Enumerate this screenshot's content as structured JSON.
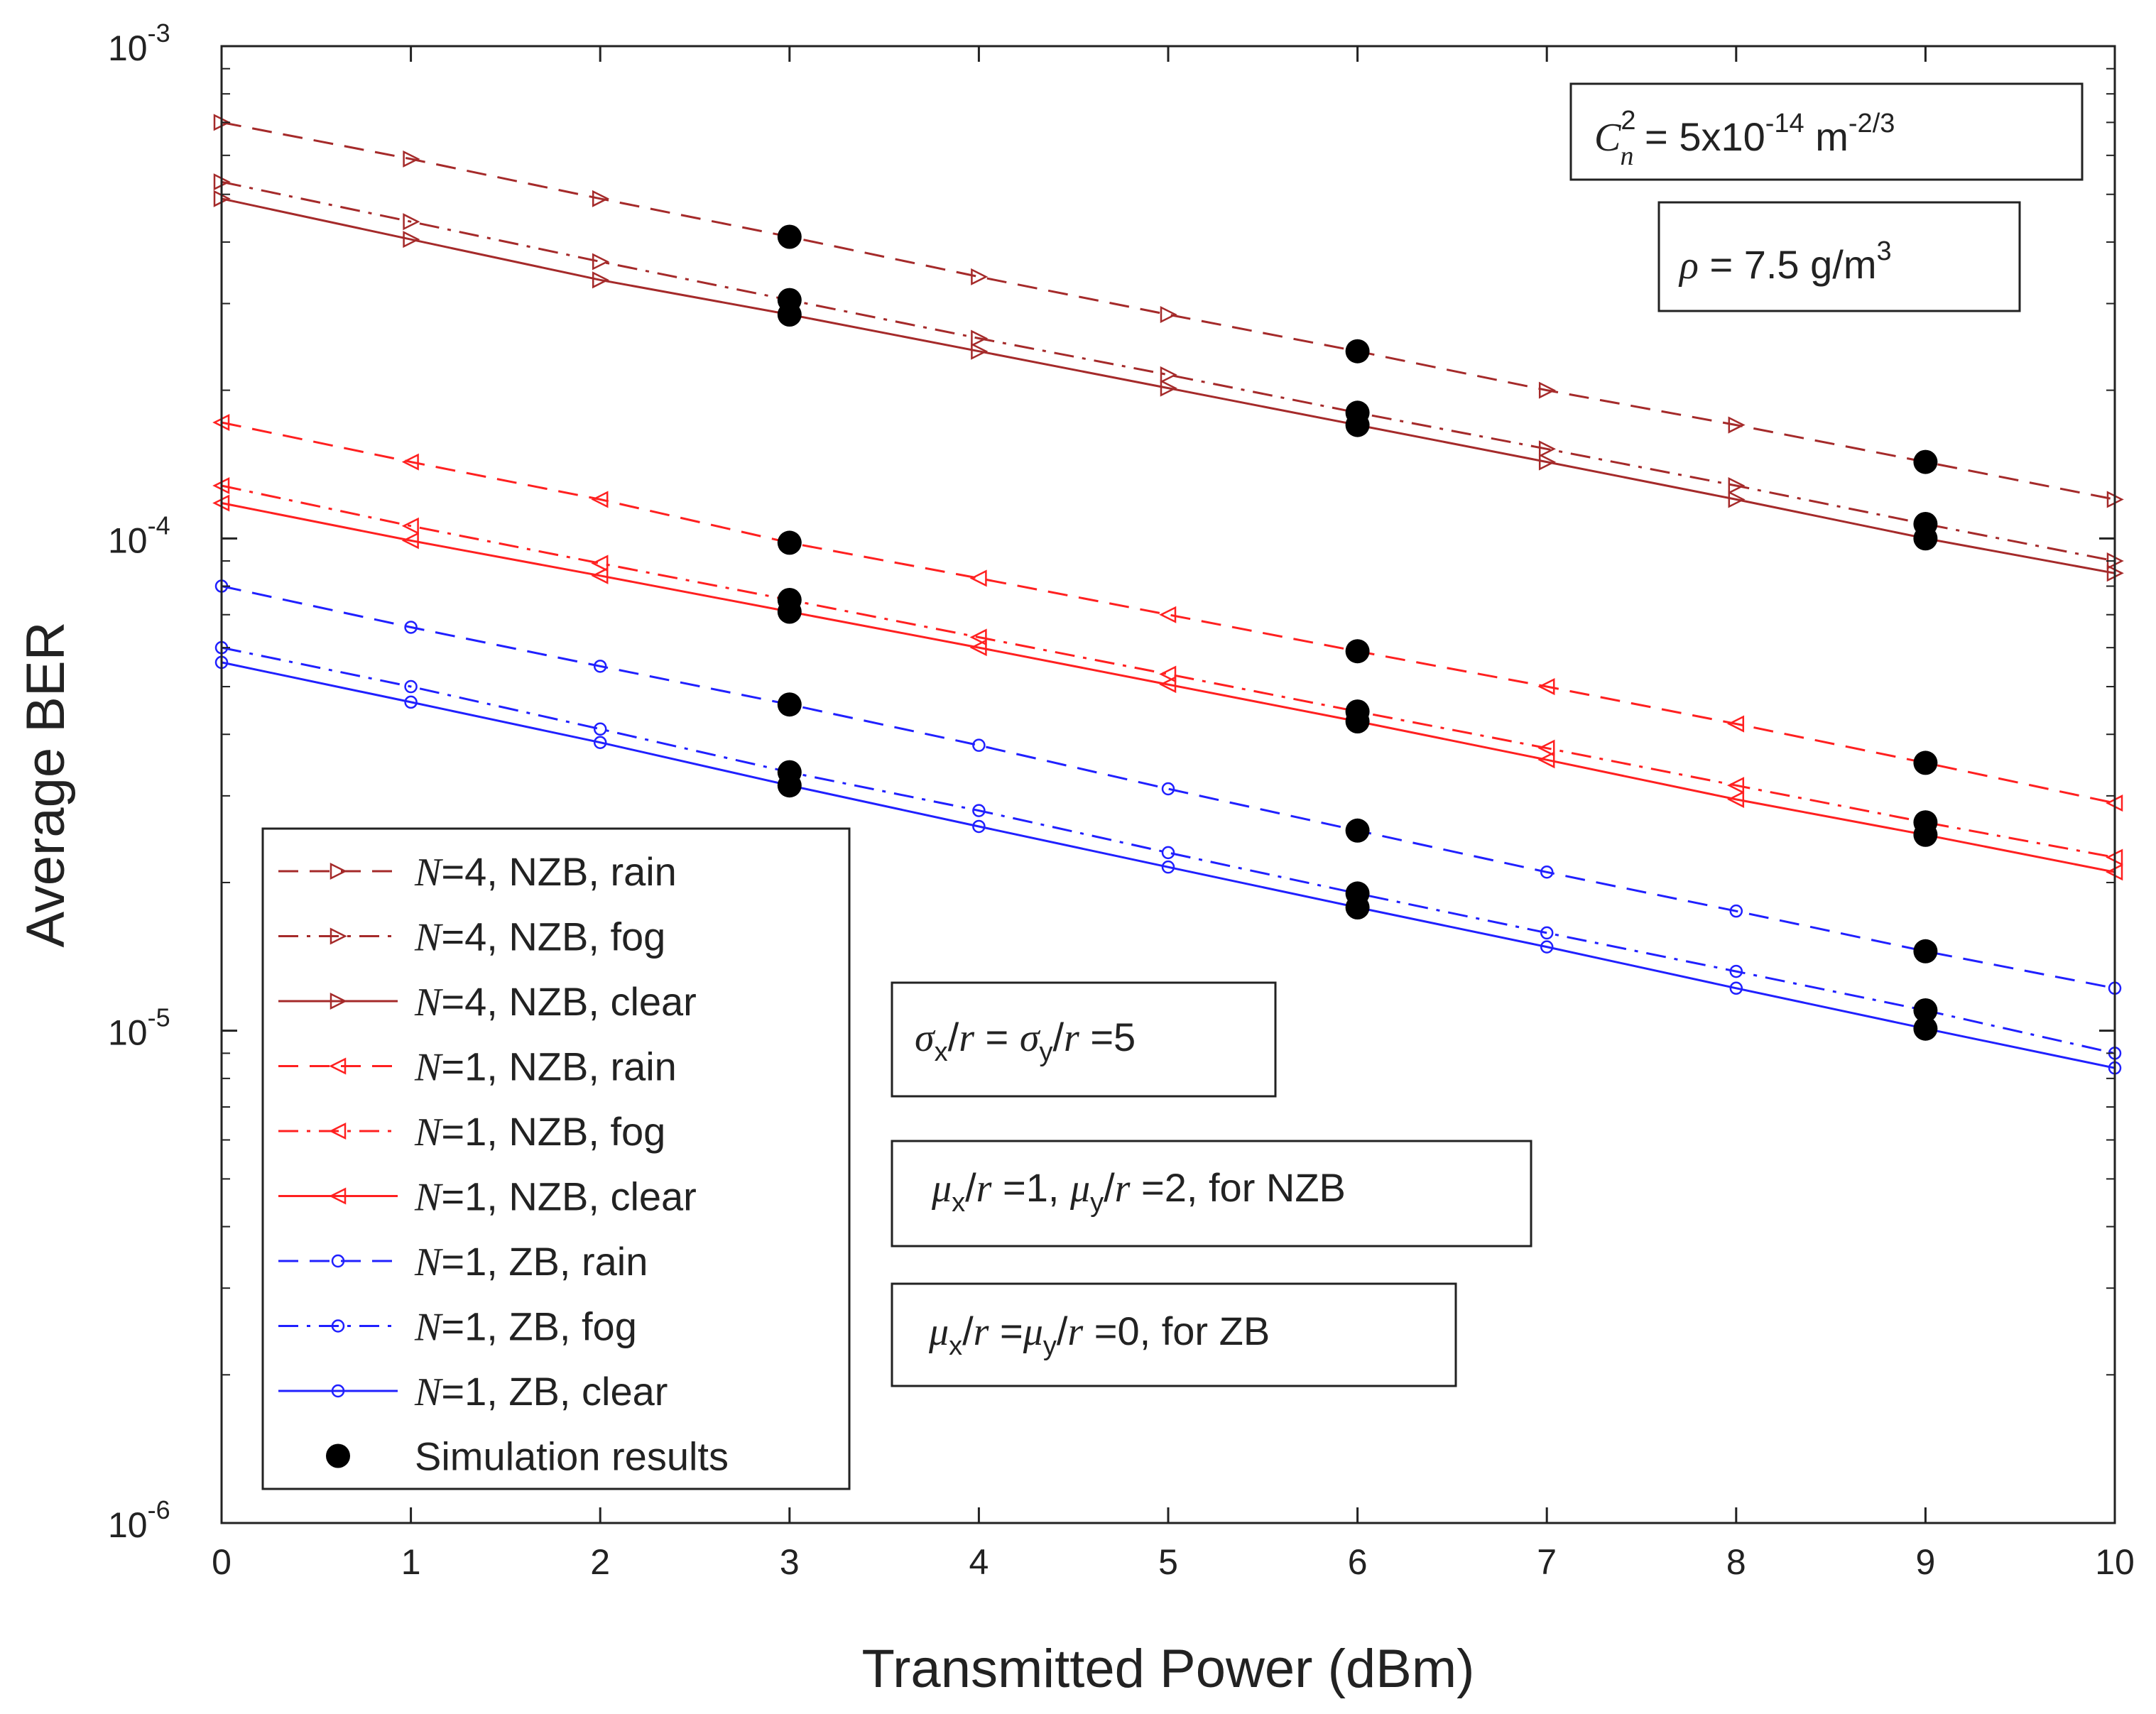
{
  "chart_data": {
    "type": "line",
    "x": [
      0,
      1,
      2,
      3,
      4,
      5,
      6,
      7,
      8,
      9,
      10
    ],
    "xlabel": "Transmitted Power (dBm)",
    "ylabel": "Average BER",
    "xlim": [
      0,
      10
    ],
    "ylim": [
      1e-06,
      0.001
    ],
    "yscale": "log",
    "xticks": [
      "0",
      "1",
      "2",
      "3",
      "4",
      "5",
      "6",
      "7",
      "8",
      "9",
      "10"
    ],
    "yticks": [
      {
        "value": 0.001,
        "base": "10",
        "exp": "-3"
      },
      {
        "value": 0.0001,
        "base": "10",
        "exp": "-4"
      },
      {
        "value": 1e-05,
        "base": "10",
        "exp": "-5"
      },
      {
        "value": 1e-06,
        "base": "10",
        "exp": "-6"
      }
    ],
    "grid": false,
    "legend_position": "bottom-left",
    "series": [
      {
        "n": "N",
        "name": "=4, NZB, rain",
        "color": "#a52a2a",
        "dash": "dash",
        "marker": "triangle-right",
        "values": [
          0.0007,
          0.00059,
          0.00049,
          0.00041,
          0.00034,
          0.000285,
          0.00024,
          0.0002,
          0.00017,
          0.000143,
          0.00012
        ]
      },
      {
        "n": "N",
        "name": "=4, NZB, fog",
        "color": "#a52a2a",
        "dash": "dashdot",
        "marker": "triangle-right",
        "values": [
          0.00053,
          0.00044,
          0.000365,
          0.000305,
          0.000255,
          0.000215,
          0.00018,
          0.000152,
          0.000128,
          0.000107,
          9e-05
        ]
      },
      {
        "n": "N",
        "name": "=4, NZB, clear",
        "color": "#a52a2a",
        "dash": "solid",
        "marker": "triangle-right",
        "values": [
          0.00049,
          0.000405,
          0.000335,
          0.000285,
          0.00024,
          0.000202,
          0.00017,
          0.000143,
          0.00012,
          0.0001,
          8.5e-05
        ]
      },
      {
        "n": "N",
        "name": "=1, NZB, rain",
        "color": "#ff2020",
        "dash": "dash",
        "marker": "triangle-left",
        "values": [
          0.000172,
          0.000143,
          0.00012,
          9.8e-05,
          8.3e-05,
          7e-05,
          5.9e-05,
          5e-05,
          4.2e-05,
          3.5e-05,
          2.9e-05
        ]
      },
      {
        "n": "N",
        "name": "=1, NZB, fog",
        "color": "#ff2020",
        "dash": "dashdot",
        "marker": "triangle-left",
        "values": [
          0.000128,
          0.000106,
          8.9e-05,
          7.5e-05,
          6.3e-05,
          5.3e-05,
          4.45e-05,
          3.75e-05,
          3.15e-05,
          2.65e-05,
          2.25e-05
        ]
      },
      {
        "n": "N",
        "name": "=1, NZB, clear",
        "color": "#ff2020",
        "dash": "solid",
        "marker": "triangle-left",
        "values": [
          0.000118,
          9.9e-05,
          8.4e-05,
          7.1e-05,
          6e-05,
          5.05e-05,
          4.25e-05,
          3.55e-05,
          2.95e-05,
          2.5e-05,
          2.1e-05
        ]
      },
      {
        "n": "N",
        "name": "=1, ZB, rain",
        "color": "#2020ff",
        "dash": "dash",
        "marker": "circle",
        "values": [
          8e-05,
          6.6e-05,
          5.5e-05,
          4.6e-05,
          3.8e-05,
          3.1e-05,
          2.55e-05,
          2.1e-05,
          1.75e-05,
          1.45e-05,
          1.22e-05
        ]
      },
      {
        "n": "N",
        "name": "=1, ZB, fog",
        "color": "#2020ff",
        "dash": "dashdot",
        "marker": "circle",
        "values": [
          6e-05,
          5e-05,
          4.1e-05,
          3.35e-05,
          2.8e-05,
          2.3e-05,
          1.9e-05,
          1.58e-05,
          1.32e-05,
          1.1e-05,
          9e-06
        ]
      },
      {
        "n": "N",
        "name": "=1, ZB, clear",
        "color": "#2020ff",
        "dash": "solid",
        "marker": "circle",
        "values": [
          5.6e-05,
          4.65e-05,
          3.85e-05,
          3.15e-05,
          2.6e-05,
          2.15e-05,
          1.78e-05,
          1.48e-05,
          1.22e-05,
          1.01e-05,
          8.4e-06
        ]
      }
    ],
    "simulation": {
      "name": "Simulation results",
      "color": "#000000",
      "x": [
        3,
        6,
        9
      ],
      "series_indices": [
        0,
        1,
        2,
        3,
        4,
        5,
        6,
        7,
        8
      ]
    },
    "annotations": {
      "cn2": {
        "sym": "C",
        "sup": "2",
        "sub": "n",
        "text": " = 5x10",
        "exp": "-14",
        "unit": " m",
        "unit_exp": "-2/3"
      },
      "rho": {
        "sym": "ρ",
        "text": " = 7.5 g/m",
        "exp": "3"
      },
      "sigma": {
        "s1": "σ",
        "sub1": "x",
        "mid1": "/",
        "r1": "r",
        "eq": " = ",
        "s2": "σ",
        "sub2": "y",
        "mid2": "/",
        "r2": "r",
        "tail": " =5"
      },
      "mu_nzb": {
        "s1": "μ",
        "sub1": "x",
        "mid1": "/",
        "r1": "r",
        "v1": " =1, ",
        "s2": "μ",
        "sub2": "y",
        "mid2": "/",
        "r2": "r",
        "tail": " =2, for NZB"
      },
      "mu_zb": {
        "s1": "μ",
        "sub1": "x",
        "mid1": "/",
        "r1": "r",
        "v1": " =",
        "s2": "μ",
        "sub2": "y",
        "mid2": "/",
        "r2": "r",
        "tail": " =0, for ZB"
      }
    }
  }
}
